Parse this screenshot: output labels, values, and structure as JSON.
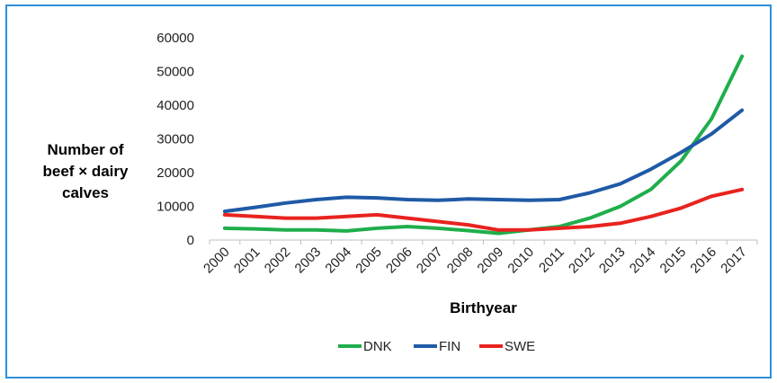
{
  "chart_data": {
    "type": "line",
    "title": "",
    "xlabel": "Birthyear",
    "ylabel_lines": [
      "Number of",
      "beef × dairy",
      "calves"
    ],
    "ylim": [
      0,
      60000
    ],
    "yticks": [
      0,
      10000,
      20000,
      30000,
      40000,
      50000,
      60000
    ],
    "ytick_labels": [
      "0",
      "10000",
      "20000",
      "30000",
      "40000",
      "50000",
      "60000"
    ],
    "grid": false,
    "legend_position": "bottom",
    "categories": [
      "2000",
      "2001",
      "2002",
      "2003",
      "2004",
      "2005",
      "2006",
      "2007",
      "2008",
      "2009",
      "2010",
      "2011",
      "2012",
      "2013",
      "2014",
      "2015",
      "2016",
      "2017"
    ],
    "series": [
      {
        "name": "DNK",
        "color": "#1fae4b",
        "values": [
          3500,
          3300,
          3000,
          3000,
          2700,
          3500,
          4000,
          3500,
          2800,
          2000,
          3000,
          4000,
          6500,
          10000,
          15000,
          23500,
          36000,
          54500
        ]
      },
      {
        "name": "FIN",
        "color": "#1f5aa6",
        "values": [
          8500,
          9700,
          11000,
          12000,
          12700,
          12500,
          12000,
          11800,
          12200,
          12000,
          11800,
          12000,
          14000,
          16700,
          21000,
          26000,
          31500,
          38500
        ]
      },
      {
        "name": "SWE",
        "color": "#e8231f",
        "values": [
          7500,
          7000,
          6500,
          6500,
          7000,
          7500,
          6500,
          5500,
          4500,
          3000,
          3000,
          3500,
          4000,
          5000,
          7000,
          9500,
          13000,
          15000
        ]
      }
    ]
  }
}
